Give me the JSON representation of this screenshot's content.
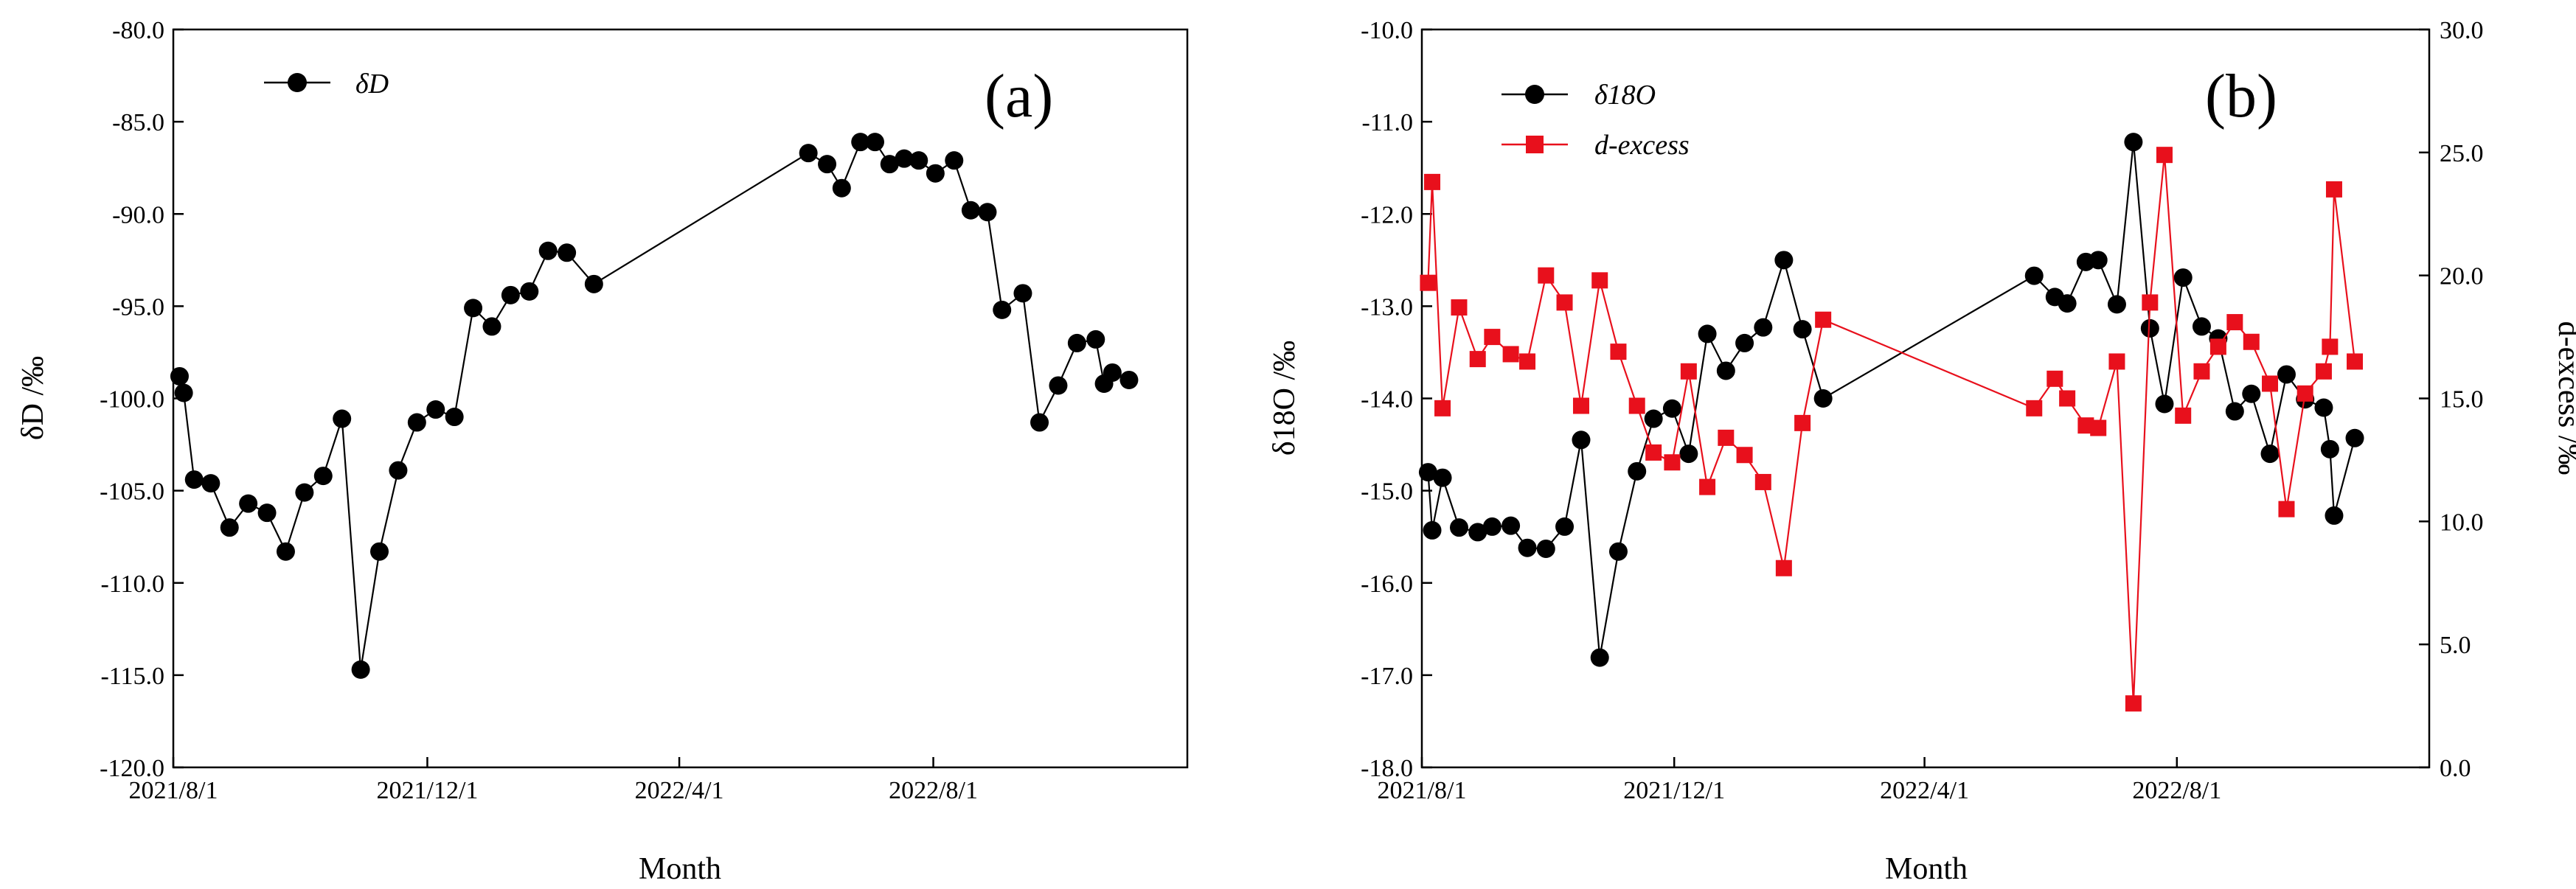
{
  "chart_data": [
    {
      "type": "line",
      "panel_label": "(a)",
      "xlabel": "Month",
      "ylabel": "δD /‰",
      "x_ticks": [
        "2021/8/1",
        "2021/12/1",
        "2022/4/1",
        "2022/8/1"
      ],
      "ylim": [
        -120,
        -80
      ],
      "y_ticks": [
        "-80.0",
        "-85.0",
        "-90.0",
        "-95.0",
        "-100.0",
        "-105.0",
        "-110.0",
        "-115.0",
        "-120.0"
      ],
      "legend": "δD",
      "series": [
        {
          "name": "δD",
          "color": "#000000",
          "marker": "circle",
          "points": [
            [
              3,
              -98.8
            ],
            [
              5,
              -99.7
            ],
            [
              10,
              -104.4
            ],
            [
              18,
              -104.6
            ],
            [
              27,
              -107.0
            ],
            [
              36,
              -105.7
            ],
            [
              45,
              -106.2
            ],
            [
              54,
              -108.3
            ],
            [
              63,
              -105.1
            ],
            [
              72,
              -104.2
            ],
            [
              81,
              -101.1
            ],
            [
              90,
              -114.7
            ],
            [
              99,
              -108.3
            ],
            [
              108,
              -103.9
            ],
            [
              117,
              -101.3
            ],
            [
              126,
              -100.6
            ],
            [
              135,
              -101.0
            ],
            [
              144,
              -95.1
            ],
            [
              153,
              -96.1
            ],
            [
              162,
              -94.4
            ],
            [
              171,
              -94.2
            ],
            [
              180,
              -92.0
            ],
            [
              189,
              -92.1
            ],
            [
              202,
              -93.8
            ],
            [
              305,
              -86.7
            ],
            [
              314,
              -87.3
            ],
            [
              321,
              -88.6
            ],
            [
              330,
              -86.1
            ],
            [
              337,
              -86.1
            ],
            [
              344,
              -87.3
            ],
            [
              351,
              -87.0
            ],
            [
              358,
              -87.1
            ],
            [
              366,
              -87.8
            ],
            [
              375,
              -87.1
            ],
            [
              383,
              -89.8
            ],
            [
              391,
              -89.9
            ],
            [
              398,
              -95.2
            ],
            [
              408,
              -94.3
            ],
            [
              416,
              -101.3
            ],
            [
              425,
              -99.3
            ],
            [
              434,
              -97.0
            ],
            [
              443,
              -96.8
            ],
            [
              447,
              -99.2
            ],
            [
              451,
              -98.6
            ],
            [
              459,
              -99.0
            ]
          ]
        }
      ]
    },
    {
      "type": "line",
      "panel_label": "(b)",
      "xlabel": "Month",
      "ylabel": "δ18O /‰",
      "ylabel_right": "d-excess /‰",
      "x_ticks": [
        "2021/8/1",
        "2021/12/1",
        "2022/4/1",
        "2022/8/1"
      ],
      "ylim": [
        -18,
        -10
      ],
      "y_ticks": [
        "-10.0",
        "-11.0",
        "-12.0",
        "-13.0",
        "-14.0",
        "-15.0",
        "-16.0",
        "-17.0",
        "-18.0"
      ],
      "ylim_right": [
        0,
        30
      ],
      "y_ticks_right": [
        "0.0",
        "5.0",
        "10.0",
        "15.0",
        "20.0",
        "25.0",
        "30.0"
      ],
      "legend": [
        "δ18O",
        "d-excess"
      ],
      "series": [
        {
          "name": "δ18O",
          "color": "#000000",
          "marker": "circle",
          "axis": "left",
          "points": [
            [
              3,
              -14.8
            ],
            [
              5,
              -15.43
            ],
            [
              10,
              -14.86
            ],
            [
              18,
              -15.4
            ],
            [
              27,
              -15.45
            ],
            [
              34,
              -15.39
            ],
            [
              43,
              -15.38
            ],
            [
              51,
              -15.62
            ],
            [
              60,
              -15.63
            ],
            [
              69,
              -15.39
            ],
            [
              77,
              -14.45
            ],
            [
              86,
              -16.81
            ],
            [
              95,
              -15.66
            ],
            [
              104,
              -14.79
            ],
            [
              112,
              -14.22
            ],
            [
              121,
              -14.11
            ],
            [
              129,
              -14.6
            ],
            [
              138,
              -13.3
            ],
            [
              147,
              -13.7
            ],
            [
              156,
              -13.4
            ],
            [
              165,
              -13.23
            ],
            [
              175,
              -12.5
            ],
            [
              184,
              -13.25
            ],
            [
              194,
              -14.0
            ],
            [
              296,
              -12.67
            ],
            [
              306,
              -12.9
            ],
            [
              312,
              -12.97
            ],
            [
              321,
              -12.52
            ],
            [
              327,
              -12.5
            ],
            [
              336,
              -12.98
            ],
            [
              344,
              -11.22
            ],
            [
              352,
              -13.24
            ],
            [
              359,
              -14.06
            ],
            [
              368,
              -12.69
            ],
            [
              377,
              -13.22
            ],
            [
              385,
              -13.35
            ],
            [
              393,
              -14.14
            ],
            [
              401,
              -13.95
            ],
            [
              410,
              -14.6
            ],
            [
              418,
              -13.74
            ],
            [
              427,
              -14.01
            ],
            [
              436,
              -14.1
            ],
            [
              439,
              -14.55
            ],
            [
              441,
              -15.27
            ],
            [
              451,
              -14.43
            ]
          ]
        },
        {
          "name": "d-excess",
          "color": "#e8101c",
          "marker": "square",
          "axis": "right",
          "points": [
            [
              3,
              19.7
            ],
            [
              5,
              23.8
            ],
            [
              10,
              14.6
            ],
            [
              18,
              18.7
            ],
            [
              27,
              16.6
            ],
            [
              34,
              17.5
            ],
            [
              43,
              16.8
            ],
            [
              51,
              16.5
            ],
            [
              60,
              20.0
            ],
            [
              69,
              18.9
            ],
            [
              77,
              14.7
            ],
            [
              86,
              19.8
            ],
            [
              95,
              16.9
            ],
            [
              104,
              14.7
            ],
            [
              112,
              12.8
            ],
            [
              121,
              12.4
            ],
            [
              129,
              16.1
            ],
            [
              138,
              11.4
            ],
            [
              147,
              13.4
            ],
            [
              156,
              12.7
            ],
            [
              165,
              11.6
            ],
            [
              175,
              8.1
            ],
            [
              184,
              14.0
            ],
            [
              194,
              18.2
            ],
            [
              296,
              14.6
            ],
            [
              306,
              15.8
            ],
            [
              312,
              15.0
            ],
            [
              321,
              13.9
            ],
            [
              327,
              13.8
            ],
            [
              336,
              16.5
            ],
            [
              344,
              2.6
            ],
            [
              352,
              18.9
            ],
            [
              359,
              24.9
            ],
            [
              368,
              14.3
            ],
            [
              377,
              16.1
            ],
            [
              385,
              17.1
            ],
            [
              393,
              18.1
            ],
            [
              401,
              17.3
            ],
            [
              410,
              15.6
            ],
            [
              418,
              10.5
            ],
            [
              427,
              15.2
            ],
            [
              436,
              16.1
            ],
            [
              439,
              17.1
            ],
            [
              441,
              23.5
            ],
            [
              451,
              16.5
            ]
          ]
        }
      ]
    }
  ]
}
